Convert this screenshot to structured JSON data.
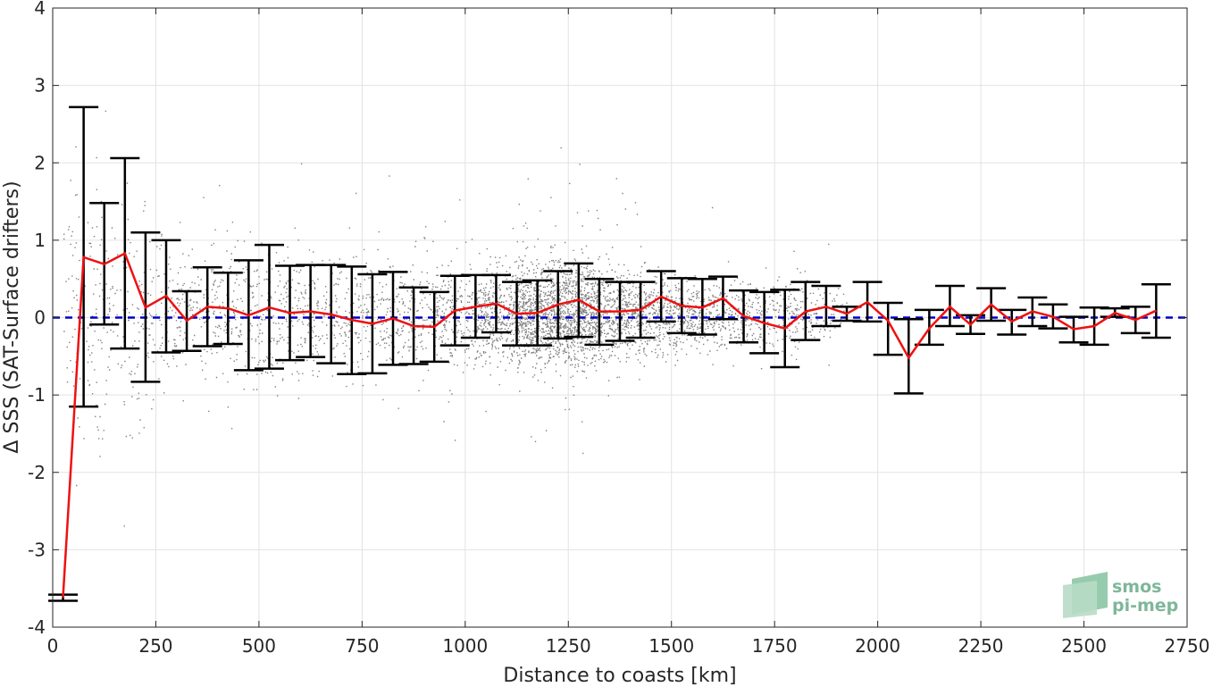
{
  "chart_data": {
    "type": "scatter",
    "xlabel": "Distance to coasts [km]",
    "ylabel": "Δ SSS (SAT-Surface drifters)",
    "xlim": [
      0,
      2750
    ],
    "ylim": [
      -4,
      4
    ],
    "xticks": [
      0,
      250,
      500,
      750,
      1000,
      1250,
      1500,
      1750,
      2000,
      2250,
      2500,
      2750
    ],
    "yticks": [
      -4,
      -3,
      -2,
      -1,
      0,
      1,
      2,
      3,
      4
    ],
    "grid": true,
    "reference_line": {
      "y": 0,
      "style": "dashed",
      "color": "#0000cc"
    },
    "colors": {
      "scatter": "#808080",
      "mean_line": "#ee1111",
      "error_bars": "#000000",
      "reference": "#0000cc"
    },
    "series": [
      {
        "kind": "binned_mean_with_std",
        "x": [
          25,
          75,
          125,
          175,
          225,
          275,
          325,
          375,
          425,
          475,
          525,
          575,
          625,
          675,
          725,
          775,
          825,
          875,
          925,
          975,
          1025,
          1075,
          1125,
          1175,
          1225,
          1275,
          1325,
          1375,
          1425,
          1475,
          1525,
          1575,
          1625,
          1675,
          1725,
          1775,
          1825,
          1875,
          1925,
          1975,
          2025,
          2075,
          2125,
          2175,
          2225,
          2275,
          2325,
          2375,
          2425,
          2475,
          2525,
          2575,
          2625,
          2675
        ],
        "mean": [
          -3.62,
          0.78,
          0.69,
          0.83,
          0.13,
          0.28,
          -0.04,
          0.14,
          0.12,
          0.03,
          0.13,
          0.06,
          0.08,
          0.04,
          -0.03,
          -0.08,
          -0.01,
          -0.11,
          -0.12,
          0.09,
          0.14,
          0.18,
          0.05,
          0.06,
          0.17,
          0.23,
          0.08,
          0.08,
          0.1,
          0.27,
          0.15,
          0.13,
          0.25,
          0.02,
          -0.07,
          -0.14,
          0.08,
          0.14,
          0.05,
          0.2,
          -0.04,
          -0.52,
          -0.14,
          0.14,
          -0.09,
          0.17,
          -0.05,
          0.08,
          0.01,
          -0.15,
          -0.11,
          0.06,
          -0.03,
          0.09
        ],
        "upper": [
          -3.58,
          2.72,
          1.48,
          2.06,
          1.1,
          1.0,
          0.34,
          0.65,
          0.58,
          0.74,
          0.94,
          0.67,
          0.68,
          0.68,
          0.66,
          0.56,
          0.59,
          0.39,
          0.33,
          0.54,
          0.55,
          0.55,
          0.46,
          0.48,
          0.6,
          0.7,
          0.5,
          0.46,
          0.46,
          0.6,
          0.51,
          0.5,
          0.53,
          0.35,
          0.33,
          0.36,
          0.46,
          0.41,
          0.14,
          0.46,
          0.19,
          -0.02,
          0.1,
          0.41,
          0.03,
          0.38,
          0.1,
          0.26,
          0.17,
          0.01,
          0.13,
          0.12,
          0.14,
          0.43
        ],
        "lower": [
          -3.66,
          -1.15,
          -0.09,
          -0.4,
          -0.83,
          -0.45,
          -0.43,
          -0.37,
          -0.34,
          -0.68,
          -0.66,
          -0.55,
          -0.51,
          -0.59,
          -0.73,
          -0.72,
          -0.61,
          -0.6,
          -0.57,
          -0.36,
          -0.26,
          -0.19,
          -0.36,
          -0.36,
          -0.27,
          -0.25,
          -0.35,
          -0.3,
          -0.26,
          -0.05,
          -0.2,
          -0.22,
          -0.02,
          -0.32,
          -0.46,
          -0.64,
          -0.29,
          -0.11,
          -0.04,
          -0.05,
          -0.48,
          -0.98,
          -0.35,
          -0.11,
          -0.21,
          -0.04,
          -0.22,
          -0.11,
          -0.14,
          -0.32,
          -0.35,
          0.01,
          -0.2,
          -0.26
        ]
      }
    ],
    "scatter_density": {
      "note_values_in_data_units": true,
      "bins_x": [
        75,
        175,
        275,
        375,
        475,
        575,
        675,
        775,
        875,
        975,
        1075,
        1175,
        1275,
        1375,
        1475,
        1575,
        1675,
        1775,
        1875
      ],
      "spread": [
        1.6,
        1.3,
        0.9,
        0.7,
        0.8,
        0.7,
        0.7,
        0.7,
        0.6,
        0.6,
        0.55,
        0.6,
        0.6,
        0.5,
        0.45,
        0.4,
        0.35,
        0.45,
        0.3
      ],
      "counts": [
        120,
        110,
        120,
        140,
        150,
        150,
        150,
        150,
        160,
        230,
        420,
        780,
        820,
        430,
        320,
        260,
        180,
        150,
        80
      ]
    }
  },
  "logo": {
    "line1": "smos",
    "line2": "pi-mep"
  }
}
